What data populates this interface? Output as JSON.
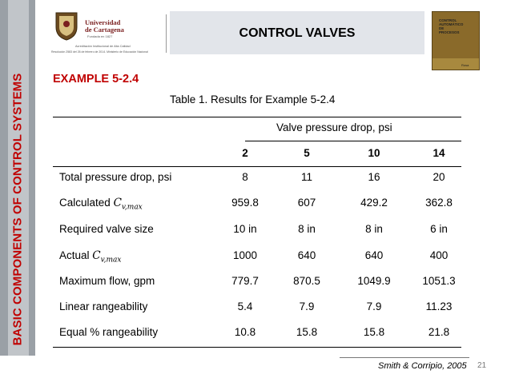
{
  "sidebar": {
    "text": "BASIC COMPONENTS OF CONTROL SYSTEMS"
  },
  "logo": {
    "name_line1": "Universidad",
    "name_line2": "de Cartagena",
    "founded": "Fundada en 1827",
    "accreditation_line1": "Acreditación Institucional de Alta Calidad",
    "accreditation_line2": "Resolución 2583 del 26 de febrero de 2014. Ministerio de Educación Nacional"
  },
  "header": {
    "title": "CONTROL VALVES"
  },
  "book": {
    "title_lines": [
      "CONTROL",
      "AUTOMÁTICO",
      "DE",
      "PROCESOS"
    ],
    "author": "Rosa"
  },
  "example": {
    "label": "EXAMPLE 5-2.4"
  },
  "table": {
    "caption": "Table 1. Results for Example 5-2.4",
    "group_header": "Valve pressure drop, psi",
    "columns": [
      "2",
      "5",
      "10",
      "14"
    ],
    "rows": [
      {
        "label": "Total pressure drop, psi",
        "values": [
          "8",
          "11",
          "16",
          "20"
        ]
      },
      {
        "label": "Calculated",
        "math": "C",
        "sub": "v,max",
        "values": [
          "959.8",
          "607",
          "429.2",
          "362.8"
        ]
      },
      {
        "label": "Required valve size",
        "values": [
          "10 in",
          "8 in",
          "8 in",
          "6 in"
        ]
      },
      {
        "label": "Actual",
        "math": "C",
        "sub": "v,max",
        "values": [
          "1000",
          "640",
          "640",
          "400"
        ]
      },
      {
        "label": "Maximum flow, gpm",
        "values": [
          "779.7",
          "870.5",
          "1049.9",
          "1051.3"
        ]
      },
      {
        "label": "Linear rangeability",
        "values": [
          "5.4",
          "7.9",
          "7.9",
          "11.23"
        ]
      },
      {
        "label": "Equal % rangeability",
        "values": [
          "10.8",
          "15.8",
          "15.8",
          "21.8"
        ]
      }
    ]
  },
  "footer": {
    "source": "Smith & Corripio, 2005",
    "page": "21"
  },
  "colors": {
    "accent_red": "#c00000",
    "title_bg": "#e2e5ea",
    "sidebar": "#9aa0a6"
  }
}
